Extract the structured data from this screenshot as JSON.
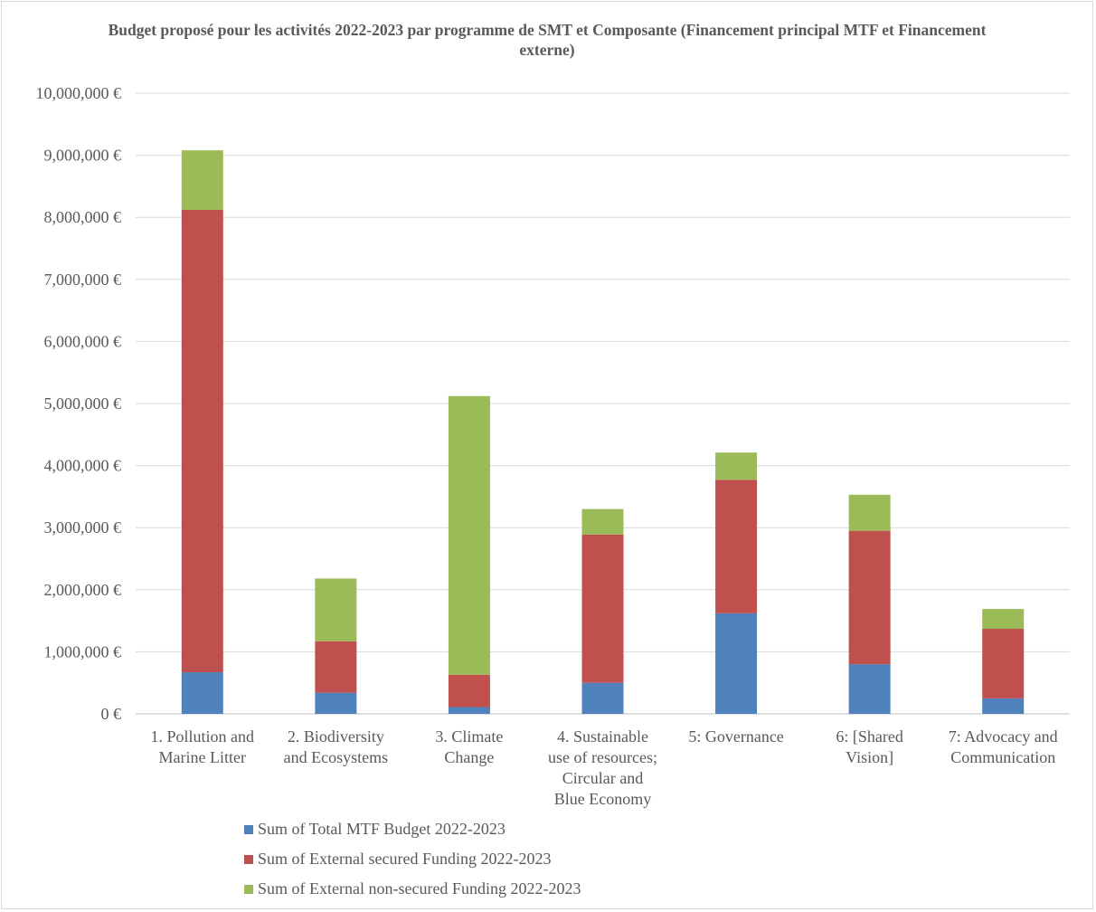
{
  "chart_data": {
    "type": "bar",
    "stacked": true,
    "title": "Budget proposé pour les activités 2022-2023 par programme de SMT et Composante (Financement principal MTF et Financement externe)",
    "categories": [
      [
        "1. Pollution and",
        "Marine Litter"
      ],
      [
        "2. Biodiversity",
        "and Ecosystems"
      ],
      [
        "3. Climate",
        "Change"
      ],
      [
        "4. Sustainable",
        "use of resources;",
        "Circular and",
        "Blue Economy"
      ],
      [
        "5: Governance"
      ],
      [
        "6: [Shared",
        "Vision]"
      ],
      [
        "7: Advocacy and",
        "Communication"
      ]
    ],
    "series": [
      {
        "name": "Sum of Total MTF Budget 2022-2023",
        "color": "#4f81bd",
        "values": [
          670000,
          340000,
          110000,
          500000,
          1620000,
          800000,
          250000
        ]
      },
      {
        "name": "Sum of External secured Funding 2022-2023",
        "color": "#c0504d",
        "values": [
          7450000,
          830000,
          520000,
          2390000,
          2150000,
          2150000,
          1120000
        ]
      },
      {
        "name": "Sum of External non-secured Funding 2022-2023",
        "color": "#9bbb59",
        "values": [
          960000,
          1010000,
          4490000,
          410000,
          440000,
          580000,
          320000
        ]
      }
    ],
    "ylim": [
      0,
      10000000
    ],
    "yticks": [
      0,
      1000000,
      2000000,
      3000000,
      4000000,
      5000000,
      6000000,
      7000000,
      8000000,
      9000000,
      10000000
    ],
    "ytick_labels": [
      "0 €",
      "1,000,000 €",
      "2,000,000 €",
      "3,000,000 €",
      "4,000,000 €",
      "5,000,000 €",
      "6,000,000 €",
      "7,000,000 €",
      "8,000,000 €",
      "9,000,000 €",
      "10,000,000 €"
    ],
    "grid": true,
    "legend_position": "bottom-left"
  }
}
